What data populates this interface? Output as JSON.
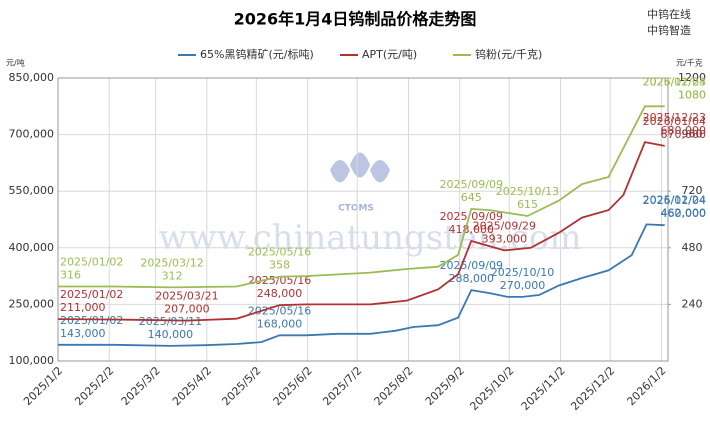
{
  "chart_data": {
    "type": "line",
    "title": "2026年1月4日钨制品价格走势图",
    "brand": [
      "中钨在线",
      "中钨智造"
    ],
    "watermark": "www.chinatungsten.com",
    "logo": "CTOMS",
    "ylabel": "元/吨",
    "y2label": "元/千克",
    "xlim": [
      "2025/01/02",
      "2026/01/06"
    ],
    "xticks": [
      {
        "value": "2025/01/02",
        "label": "2025/1/2"
      },
      {
        "value": "2025/02/02",
        "label": "2025/2/2"
      },
      {
        "value": "2025/03/02",
        "label": "2025/3/2"
      },
      {
        "value": "2025/04/02",
        "label": "2025/4/2"
      },
      {
        "value": "2025/05/02",
        "label": "2025/5/2"
      },
      {
        "value": "2025/06/02",
        "label": "2025/6/2"
      },
      {
        "value": "2025/07/02",
        "label": "2025/7/2"
      },
      {
        "value": "2025/08/02",
        "label": "2025/8/2"
      },
      {
        "value": "2025/09/02",
        "label": "2025/9/2"
      },
      {
        "value": "2025/10/02",
        "label": "2025/10/2"
      },
      {
        "value": "2025/11/02",
        "label": "2025/11/2"
      },
      {
        "value": "2025/12/02",
        "label": "2025/12/2"
      },
      {
        "value": "2026/01/02",
        "label": "2026/1/2"
      }
    ],
    "ylim": [
      100000,
      850000
    ],
    "yticks": [
      {
        "value": 100000,
        "label": "100,000"
      },
      {
        "value": 250000,
        "label": "250,000"
      },
      {
        "value": 400000,
        "label": "400,000"
      },
      {
        "value": 550000,
        "label": "550,000"
      },
      {
        "value": 700000,
        "label": "700,000"
      },
      {
        "value": 850000,
        "label": "850,000"
      }
    ],
    "y2lim": [
      0,
      1200
    ],
    "y2ticks": [
      240,
      480,
      720,
      960,
      1200
    ],
    "grid": true,
    "series": [
      {
        "name": "65%黑钨精矿(元/标吨)",
        "color": "#3b78b1",
        "x": [
          "2025/01/02",
          "2025/02/05",
          "2025/03/11",
          "2025/04/01",
          "2025/04/20",
          "2025/05/05",
          "2025/05/16",
          "2025/06/01",
          "2025/06/20",
          "2025/07/10",
          "2025/07/25",
          "2025/08/05",
          "2025/08/20",
          "2025/09/01",
          "2025/09/09",
          "2025/09/20",
          "2025/10/01",
          "2025/10/10",
          "2025/10/20",
          "2025/11/01",
          "2025/11/15",
          "2025/12/01",
          "2025/12/15",
          "2025/12/24",
          "2026/01/04"
        ],
        "values": [
          143000,
          143000,
          140000,
          142000,
          145000,
          150000,
          168000,
          168000,
          172000,
          172000,
          180000,
          190000,
          195000,
          215000,
          288000,
          280000,
          270000,
          270000,
          275000,
          300000,
          320000,
          340000,
          380000,
          462000,
          460000
        ],
        "annotations": [
          {
            "date": "2025/01/02",
            "value": 143000,
            "label": "143,000"
          },
          {
            "date": "2025/03/11",
            "value": 140000,
            "label": "140,000"
          },
          {
            "date": "2025/05/16",
            "value": 168000,
            "label": "168,000"
          },
          {
            "date": "2025/09/09",
            "value": 288000,
            "label": "288,000"
          },
          {
            "date": "2025/10/10",
            "value": 270000,
            "label": "270,000"
          },
          {
            "date": "2025/12/24",
            "value": 462000,
            "label": "462,000"
          },
          {
            "date": "2026/01/04",
            "value": 460000,
            "label": "460,000"
          }
        ]
      },
      {
        "name": "APT(元/吨)",
        "color": "#b03232",
        "x": [
          "2025/01/02",
          "2025/02/05",
          "2025/03/21",
          "2025/04/20",
          "2025/05/16",
          "2025/06/01",
          "2025/07/10",
          "2025/08/01",
          "2025/08/20",
          "2025/09/01",
          "2025/09/09",
          "2025/09/29",
          "2025/10/15",
          "2025/11/01",
          "2025/11/15",
          "2025/12/01",
          "2025/12/10",
          "2025/12/23",
          "2026/01/04"
        ],
        "values": [
          211000,
          210000,
          207000,
          212000,
          248000,
          250000,
          250000,
          260000,
          290000,
          330000,
          418000,
          393000,
          400000,
          440000,
          480000,
          500000,
          540000,
          680000,
          670000
        ],
        "annotations": [
          {
            "date": "2025/01/02",
            "value": 211000,
            "label": "211,000"
          },
          {
            "date": "2025/03/21",
            "value": 207000,
            "label": "207,000"
          },
          {
            "date": "2025/05/16",
            "value": 248000,
            "label": "248,000"
          },
          {
            "date": "2025/09/09",
            "value": 418000,
            "label": "418,000"
          },
          {
            "date": "2025/09/29",
            "value": 393000,
            "label": "393,000"
          },
          {
            "date": "2025/12/23",
            "value": 680000,
            "label": "680,000"
          },
          {
            "date": "2026/01/04",
            "value": 670000,
            "label": "670,000"
          }
        ]
      },
      {
        "name": "钨粉(元/千克)",
        "color": "#9cbc52",
        "axis": "y2",
        "x": [
          "2025/01/02",
          "2025/02/05",
          "2025/03/12",
          "2025/04/20",
          "2025/05/16",
          "2025/06/01",
          "2025/07/10",
          "2025/08/01",
          "2025/08/20",
          "2025/09/01",
          "2025/09/09",
          "2025/09/20",
          "2025/10/13",
          "2025/11/01",
          "2025/11/15",
          "2025/12/01",
          "2025/12/23",
          "2026/01/04"
        ],
        "values": [
          316,
          316,
          312,
          316,
          358,
          360,
          375,
          390,
          400,
          450,
          645,
          640,
          615,
          680,
          750,
          780,
          1080,
          1080
        ],
        "annotations": [
          {
            "date": "2025/01/02",
            "value": 316
          },
          {
            "date": "2025/03/12",
            "value": 312
          },
          {
            "date": "2025/05/16",
            "value": 358
          },
          {
            "date": "2025/09/09",
            "value": 645
          },
          {
            "date": "2025/10/13",
            "value": 615
          },
          {
            "date": "2025/12/23",
            "value": 1080
          },
          {
            "date": "2026/01/04",
            "value": 1080
          }
        ]
      }
    ]
  }
}
